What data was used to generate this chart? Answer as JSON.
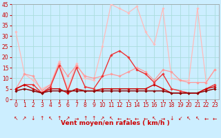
{
  "background_color": "#cceeff",
  "grid_color": "#aadddd",
  "xlim": [
    -0.5,
    23.5
  ],
  "ylim": [
    0,
    45
  ],
  "yticks": [
    0,
    5,
    10,
    15,
    20,
    25,
    30,
    35,
    40,
    45
  ],
  "xticks": [
    0,
    1,
    2,
    3,
    4,
    5,
    6,
    7,
    8,
    9,
    10,
    11,
    12,
    13,
    14,
    15,
    16,
    17,
    18,
    19,
    20,
    21,
    22,
    23
  ],
  "xlabel": "Vent moyen/en rafales ( km/h )",
  "series": [
    {
      "x": [
        0,
        1,
        2,
        3,
        4,
        5,
        6,
        7,
        8,
        9,
        10,
        11,
        12,
        13,
        14,
        15,
        16,
        17,
        18,
        19,
        20,
        21,
        22,
        23
      ],
      "y": [
        32,
        12,
        9,
        5,
        7,
        18,
        5,
        17,
        10,
        9,
        25,
        45,
        43,
        41,
        44,
        32,
        26,
        43,
        10,
        9,
        9,
        43,
        8,
        14
      ],
      "color": "#ffbbbb",
      "lw": 0.9,
      "marker": "D",
      "ms": 1.8
    },
    {
      "x": [
        0,
        1,
        2,
        3,
        4,
        5,
        6,
        7,
        8,
        9,
        10,
        11,
        12,
        13,
        14,
        15,
        16,
        17,
        18,
        19,
        20,
        21,
        22,
        23
      ],
      "y": [
        5,
        12,
        11,
        4,
        7,
        17,
        11,
        16,
        11,
        10,
        11,
        12,
        11,
        13,
        15,
        13,
        9,
        14,
        13,
        9,
        8,
        8,
        8,
        14
      ],
      "color": "#ff9999",
      "lw": 0.9,
      "marker": "D",
      "ms": 1.8
    },
    {
      "x": [
        0,
        1,
        2,
        3,
        4,
        5,
        6,
        7,
        8,
        9,
        10,
        11,
        12,
        13,
        14,
        15,
        16,
        17,
        18,
        19,
        20,
        21,
        22,
        23
      ],
      "y": [
        5,
        7,
        7,
        3,
        6,
        16,
        4,
        15,
        6,
        5,
        11,
        21,
        23,
        20,
        14,
        12,
        8,
        12,
        5,
        4,
        3,
        3,
        5,
        7
      ],
      "color": "#ee3333",
      "lw": 1.0,
      "marker": "D",
      "ms": 1.8
    },
    {
      "x": [
        0,
        1,
        2,
        3,
        4,
        5,
        6,
        7,
        8,
        9,
        10,
        11,
        12,
        13,
        14,
        15,
        16,
        17,
        18,
        19,
        20,
        21,
        22,
        23
      ],
      "y": [
        5,
        7,
        5,
        3,
        5,
        5,
        3,
        5,
        4,
        4,
        5,
        5,
        5,
        5,
        5,
        5,
        7,
        5,
        3,
        3,
        3,
        3,
        5,
        6
      ],
      "color": "#cc0000",
      "lw": 1.0,
      "marker": "D",
      "ms": 1.8
    },
    {
      "x": [
        0,
        1,
        2,
        3,
        4,
        5,
        6,
        7,
        8,
        9,
        10,
        11,
        12,
        13,
        14,
        15,
        16,
        17,
        18,
        19,
        20,
        21,
        22,
        23
      ],
      "y": [
        4,
        5,
        4,
        3,
        4,
        4,
        4,
        4,
        4,
        4,
        4,
        4,
        4,
        4,
        4,
        4,
        4,
        4,
        3,
        3,
        3,
        3,
        4,
        5
      ],
      "color": "#880000",
      "lw": 1.0,
      "marker": "D",
      "ms": 1.8
    }
  ],
  "wind_arrows": [
    "↖",
    "↗",
    "↓",
    "↑",
    "↖",
    "↑",
    "↗",
    "→",
    "↑",
    "↑",
    "↗",
    "↖",
    "←",
    "←",
    "←",
    "←",
    "↖",
    "→",
    "↓",
    "↙",
    "↖",
    "↖",
    "←",
    "←"
  ],
  "xlabel_color": "#cc0000",
  "xlabel_fontsize": 6.5,
  "tick_color": "#cc0000",
  "tick_fontsize": 5.5,
  "arrow_fontsize": 5.5
}
